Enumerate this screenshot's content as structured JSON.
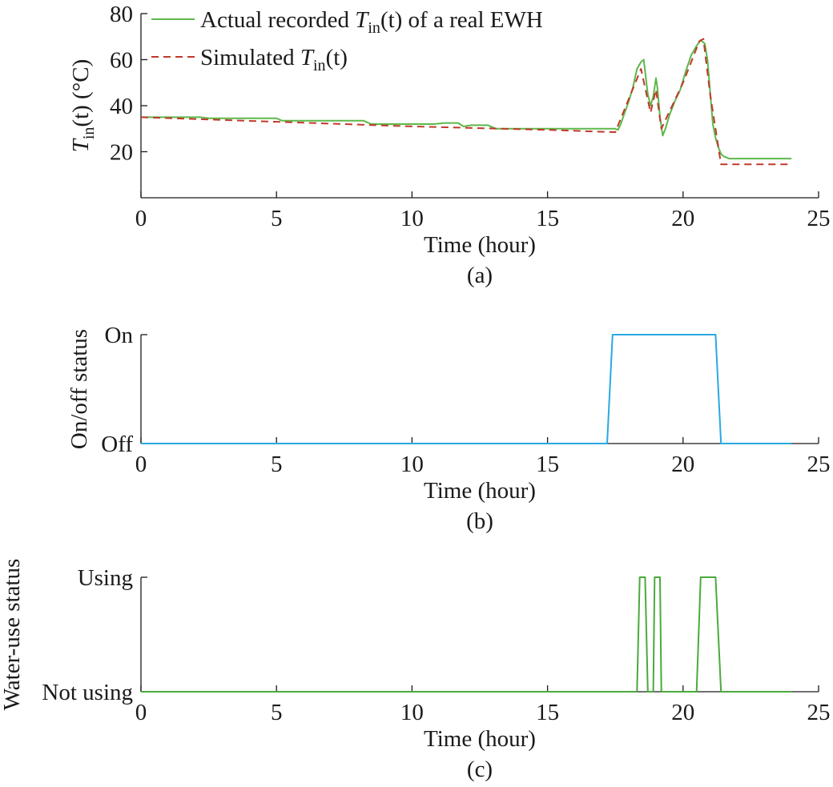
{
  "colors": {
    "actual": "#5db84a",
    "simulated": "#c0392b",
    "onoff": "#29a9e1",
    "wateruse": "#4aaa3c",
    "axis": "#1a1a1a"
  },
  "chart_data": [
    {
      "type": "line",
      "caption": "(a)",
      "xlabel": "Time (hour)",
      "ylabel": "T_in(t) (°C)",
      "xlim": [
        0,
        25
      ],
      "ylim": [
        0,
        80
      ],
      "xticks": [
        0,
        5,
        10,
        15,
        20,
        25
      ],
      "yticks": [
        20,
        40,
        60,
        80
      ],
      "legend": {
        "placement": "top-left",
        "entries": [
          {
            "pre": "Actual recorded ",
            "var": "T",
            "sub": "in",
            "post": "(t) of a real EWH"
          },
          {
            "pre": "Simulated ",
            "var": "T",
            "sub": "in",
            "post": "(t)"
          }
        ]
      },
      "series": [
        {
          "style": "solid",
          "points": [
            [
              0,
              35
            ],
            [
              2.2,
              35
            ],
            [
              2.5,
              34.5
            ],
            [
              5,
              34.5
            ],
            [
              5.2,
              33.5
            ],
            [
              8.2,
              33.5
            ],
            [
              8.5,
              32
            ],
            [
              10.8,
              32
            ],
            [
              11.2,
              32.5
            ],
            [
              11.7,
              32.5
            ],
            [
              11.9,
              31
            ],
            [
              12.2,
              31.5
            ],
            [
              12.8,
              31.5
            ],
            [
              13.1,
              30
            ],
            [
              17.5,
              30
            ],
            [
              17.6,
              29.5
            ],
            [
              17.7,
              32
            ],
            [
              17.85,
              37
            ],
            [
              18.0,
              42
            ],
            [
              18.15,
              48
            ],
            [
              18.3,
              56
            ],
            [
              18.45,
              59
            ],
            [
              18.55,
              60
            ],
            [
              18.6,
              55
            ],
            [
              18.7,
              45
            ],
            [
              18.8,
              40
            ],
            [
              18.9,
              44
            ],
            [
              19.0,
              52
            ],
            [
              19.05,
              48
            ],
            [
              19.15,
              35
            ],
            [
              19.25,
              27
            ],
            [
              19.35,
              30
            ],
            [
              19.5,
              36
            ],
            [
              19.7,
              42
            ],
            [
              19.9,
              47
            ],
            [
              20.1,
              55
            ],
            [
              20.3,
              62
            ],
            [
              20.5,
              66
            ],
            [
              20.65,
              68.5
            ],
            [
              20.8,
              67
            ],
            [
              20.9,
              60
            ],
            [
              21.0,
              46
            ],
            [
              21.1,
              32
            ],
            [
              21.2,
              26
            ],
            [
              21.3,
              22
            ],
            [
              21.4,
              19
            ],
            [
              21.5,
              18
            ],
            [
              21.7,
              17
            ],
            [
              24,
              17
            ]
          ]
        },
        {
          "style": "dashed",
          "points": [
            [
              0,
              35
            ],
            [
              5,
              33
            ],
            [
              10,
              31
            ],
            [
              15,
              29.5
            ],
            [
              17.5,
              28.5
            ],
            [
              18.45,
              56
            ],
            [
              18.8,
              37
            ],
            [
              19.0,
              47
            ],
            [
              19.2,
              30
            ],
            [
              20.0,
              50
            ],
            [
              20.6,
              68
            ],
            [
              20.75,
              69
            ],
            [
              21.0,
              45
            ],
            [
              21.4,
              14.5
            ],
            [
              24,
              14.5
            ]
          ]
        }
      ]
    },
    {
      "type": "line",
      "caption": "(b)",
      "xlabel": "Time (hour)",
      "ylabel": "On/off status",
      "xlim": [
        0,
        25
      ],
      "ylim": [
        0,
        1
      ],
      "xticks": [
        0,
        5,
        10,
        15,
        20,
        25
      ],
      "yticks": [
        0,
        1
      ],
      "ytick_labels": [
        "Off",
        "On"
      ],
      "series": [
        {
          "points": [
            [
              0,
              0
            ],
            [
              17.2,
              0
            ],
            [
              17.4,
              1
            ],
            [
              21.2,
              1
            ],
            [
              21.4,
              0
            ],
            [
              24,
              0
            ]
          ]
        }
      ]
    },
    {
      "type": "line",
      "caption": "(c)",
      "xlabel": "Time (hour)",
      "ylabel": "Water-use status",
      "xlim": [
        0,
        25
      ],
      "ylim": [
        0,
        1
      ],
      "xticks": [
        0,
        5,
        10,
        15,
        20,
        25
      ],
      "yticks": [
        0,
        1
      ],
      "ytick_labels": [
        "Not using",
        "Using"
      ],
      "series": [
        {
          "points": [
            [
              0,
              0
            ],
            [
              18.3,
              0
            ],
            [
              18.4,
              1
            ],
            [
              18.6,
              1
            ],
            [
              18.7,
              0
            ],
            [
              18.9,
              0
            ],
            [
              18.95,
              1
            ],
            [
              19.15,
              1
            ],
            [
              19.2,
              0
            ],
            [
              20.5,
              0
            ],
            [
              20.65,
              1
            ],
            [
              21.2,
              1
            ],
            [
              21.4,
              0
            ],
            [
              24,
              0
            ]
          ]
        }
      ]
    }
  ]
}
